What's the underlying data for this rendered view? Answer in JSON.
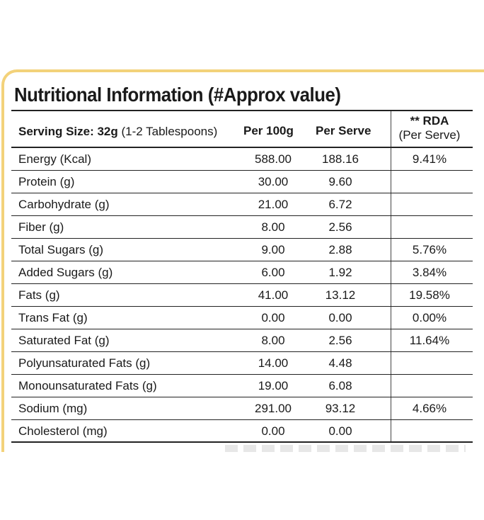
{
  "title": "Nutritional Information (#Approx value)",
  "header": {
    "serving_label": "Serving Size: 32g",
    "serving_note": " (1-2 Tablespoons)",
    "per_100g": "Per 100g",
    "per_serve": "Per Serve",
    "rda_title": "** RDA",
    "rda_sub": "(Per Serve)"
  },
  "rows": [
    {
      "name": "Energy (Kcal)",
      "per100": "588.00",
      "perserve": "188.16",
      "rda": "9.41%"
    },
    {
      "name": "Protein (g)",
      "per100": "30.00",
      "perserve": "9.60",
      "rda": ""
    },
    {
      "name": "Carbohydrate (g)",
      "per100": "21.00",
      "perserve": "6.72",
      "rda": ""
    },
    {
      "name": "Fiber (g)",
      "per100": "8.00",
      "perserve": "2.56",
      "rda": ""
    },
    {
      "name": "Total Sugars (g)",
      "per100": "9.00",
      "perserve": "2.88",
      "rda": "5.76%"
    },
    {
      "name": "Added Sugars (g)",
      "per100": "6.00",
      "perserve": "1.92",
      "rda": "3.84%"
    },
    {
      "name": "Fats (g)",
      "per100": "41.00",
      "perserve": "13.12",
      "rda": "19.58%"
    },
    {
      "name": "Trans Fat (g)",
      "per100": "0.00",
      "perserve": "0.00",
      "rda": "0.00%"
    },
    {
      "name": "Saturated Fat (g)",
      "per100": "8.00",
      "perserve": "2.56",
      "rda": "11.64%"
    },
    {
      "name": "Polyunsaturated Fats (g)",
      "per100": "14.00",
      "perserve": "4.48",
      "rda": ""
    },
    {
      "name": "Monounsaturated Fats (g)",
      "per100": "19.00",
      "perserve": "6.08",
      "rda": ""
    },
    {
      "name": "Sodium (mg)",
      "per100": "291.00",
      "perserve": "93.12",
      "rda": "4.66%"
    },
    {
      "name": "Cholesterol (mg)",
      "per100": "0.00",
      "perserve": "0.00",
      "rda": ""
    }
  ],
  "colors": {
    "border_accent": "#f3d27a",
    "text": "#1a1a1a",
    "rule": "#222222"
  }
}
